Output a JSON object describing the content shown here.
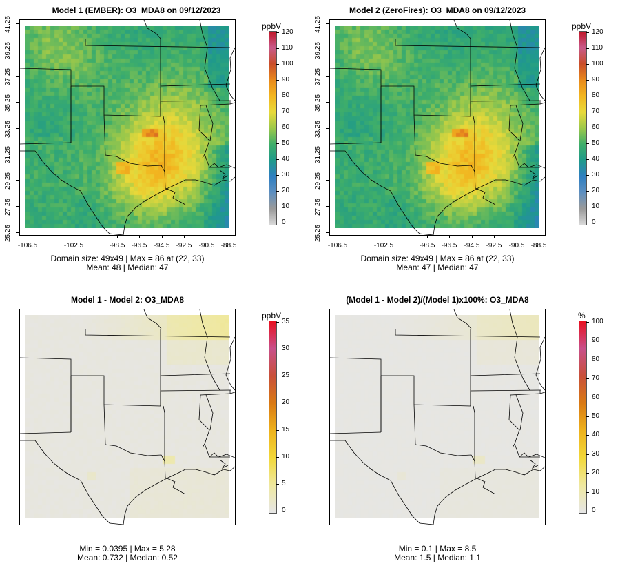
{
  "panels": [
    {
      "id": "p1",
      "title": "Model 1 (EMBER): O3_MDA8 on 09/12/2023",
      "unit": "ppbV",
      "colorbar_ticks": [
        "120",
        "110",
        "100",
        "90",
        "80",
        "70",
        "60",
        "50",
        "40",
        "30",
        "20",
        "10",
        "0"
      ],
      "stats_line1": "Domain size: 49x49 | Max = 86 at (22, 33)",
      "stats_line2": "Mean: 48 |  Median: 47",
      "y_ticks": [
        "41.25",
        "39.25",
        "37.25",
        "35.25",
        "33.25",
        "31.25",
        "29.25",
        "27.25",
        "25.25"
      ],
      "x_ticks": [
        "-106.5",
        "-102.5",
        "-98.5",
        "-96.5",
        "-94.5",
        "-92.5",
        "-90.5",
        "-88.5"
      ],
      "field_style": "ozone"
    },
    {
      "id": "p2",
      "title": "Model 2 (ZeroFires): O3_MDA8 on 09/12/2023",
      "unit": "ppbV",
      "colorbar_ticks": [
        "120",
        "110",
        "100",
        "90",
        "80",
        "70",
        "60",
        "50",
        "40",
        "30",
        "20",
        "10",
        "0"
      ],
      "stats_line1": "Domain size: 49x49 | Max = 86 at (22, 33)",
      "stats_line2": "Mean: 47 |  Median: 47",
      "y_ticks": [
        "41.25",
        "39.25",
        "37.25",
        "35.25",
        "33.25",
        "31.25",
        "29.25",
        "27.25",
        "25.25"
      ],
      "x_ticks": [
        "-106.5",
        "-102.5",
        "-98.5",
        "-96.5",
        "-94.5",
        "-92.5",
        "-90.5",
        "-88.5"
      ],
      "field_style": "ozone"
    },
    {
      "id": "p3",
      "title": "Model 1 - Model 2: O3_MDA8",
      "unit": "ppbV",
      "colorbar_ticks": [
        "35",
        "30",
        "25",
        "20",
        "15",
        "10",
        "5",
        "0"
      ],
      "stats_line1": "Min = 0.0395 | Max = 5.28",
      "stats_line2": "Mean: 0.732 |  Median: 0.52",
      "field_style": "diff"
    },
    {
      "id": "p4",
      "title": "(Model 1 - Model 2)/(Model 1)x100%: O3_MDA8",
      "unit": "%",
      "colorbar_ticks": [
        "100",
        "90",
        "80",
        "70",
        "60",
        "50",
        "40",
        "30",
        "20",
        "10",
        "0"
      ],
      "stats_line1": "Min = 0.1 | Max = 8.5",
      "stats_line2": "Mean: 1.5 |  Median: 1.1",
      "field_style": "pct"
    }
  ],
  "colors": {
    "ozone_scale": [
      "#d9d9d9",
      "#9a9a9a",
      "#5e8fc0",
      "#2f7fc1",
      "#1f9a8a",
      "#3fae6a",
      "#9cc84a",
      "#e8d93a",
      "#f2b51f",
      "#e8891c",
      "#c94e2a",
      "#c85a8a",
      "#c0182a"
    ],
    "diff_scale": [
      "#e6e6e6",
      "#efe8a0",
      "#f2d83a",
      "#eeb21c",
      "#d97a14",
      "#c8503a",
      "#c8508a",
      "#e81020"
    ],
    "map_lines": "#000000"
  }
}
